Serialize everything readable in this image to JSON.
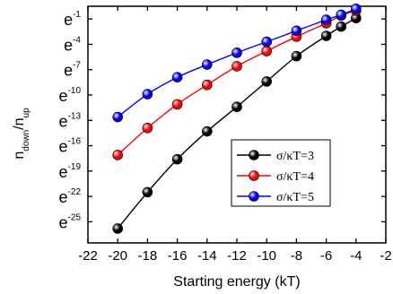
{
  "chart_data": {
    "type": "line",
    "xlabel": "Starting energy (kT)",
    "ylabel_main": "n",
    "ylabel_sub1": "down",
    "ylabel_sep": "/n",
    "ylabel_sub2": "up",
    "xlim": [
      -22,
      -2
    ],
    "ylim": [
      -27.5,
      0.5
    ],
    "y_scale": "log (base e)",
    "x_ticks": [
      -22,
      -20,
      -18,
      -16,
      -14,
      -12,
      -10,
      -8,
      -6,
      -4,
      -2
    ],
    "x_tick_labels": [
      "-22",
      "-20",
      "-18",
      "-16",
      "-14",
      "-12",
      "-10",
      "-8",
      "-6",
      "-4",
      "-2"
    ],
    "y_tick_base": "e",
    "y_ticks": [
      -1,
      -4,
      -7,
      -10,
      -13,
      -16,
      -19,
      -22,
      -25
    ],
    "y_tick_exps": [
      "-1",
      "-4",
      "-7",
      "-10",
      "-13",
      "-16",
      "-19",
      "-22",
      "-25"
    ],
    "legend_position": "center-right",
    "series": [
      {
        "name": "σ/κT=3",
        "color": "#000000",
        "x": [
          -20,
          -18,
          -16,
          -14,
          -12,
          -10,
          -8,
          -6,
          -5,
          -4
        ],
        "y": [
          -25.8,
          -21.5,
          -17.6,
          -14.3,
          -11.4,
          -8.4,
          -5.4,
          -3.0,
          -1.9,
          -0.9
        ]
      },
      {
        "name": "σ/κT=4",
        "color": "#ff0000",
        "x": [
          -20,
          -18,
          -16,
          -14,
          -12,
          -10,
          -8,
          -6,
          -5,
          -4
        ],
        "y": [
          -17.1,
          -13.9,
          -11.1,
          -8.8,
          -6.6,
          -4.8,
          -3.1,
          -1.5,
          -0.6,
          0.0
        ]
      },
      {
        "name": "σ/κT=5",
        "color": "#0000ff",
        "x": [
          -20,
          -18,
          -16,
          -14,
          -12,
          -10,
          -8,
          -6,
          -5,
          -4
        ],
        "y": [
          -12.6,
          -9.9,
          -7.9,
          -6.4,
          -5.0,
          -3.7,
          -2.4,
          -1.1,
          -0.5,
          0.2
        ]
      }
    ]
  }
}
